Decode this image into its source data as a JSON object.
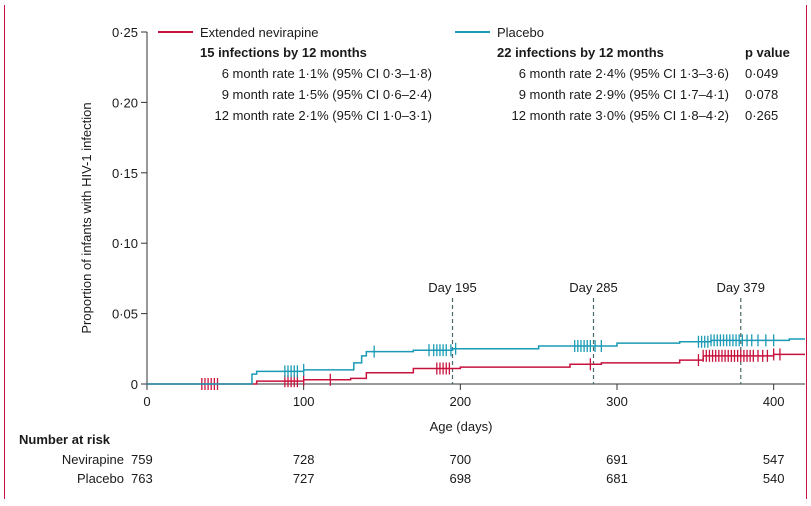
{
  "chart_data": {
    "type": "line",
    "subtype": "kaplan-meier step curve with censoring ticks",
    "xlabel": "Age (days)",
    "ylabel": "Proportion of infants with HIV-1 infection",
    "xlim": [
      0,
      420
    ],
    "ylim": [
      0,
      0.25
    ],
    "x_ticks": [
      0,
      100,
      200,
      300,
      400
    ],
    "y_ticks": [
      {
        "value": 0,
        "label": "0"
      },
      {
        "value": 0.05,
        "label": "0·05"
      },
      {
        "value": 0.1,
        "label": "0·10"
      },
      {
        "value": 0.15,
        "label": "0·15"
      },
      {
        "value": 0.2,
        "label": "0·20"
      },
      {
        "value": 0.25,
        "label": "0·25"
      }
    ],
    "reference_lines": [
      {
        "x": 195,
        "label": "Day 195"
      },
      {
        "x": 285,
        "label": "Day 285"
      },
      {
        "x": 379,
        "label": "Day 379"
      }
    ],
    "series": [
      {
        "name": "Extended nevirapine",
        "color": "#c8123e",
        "steps": [
          [
            0,
            0
          ],
          [
            68,
            0
          ],
          [
            70,
            0.002
          ],
          [
            100,
            0.003
          ],
          [
            130,
            0.004
          ],
          [
            140,
            0.008
          ],
          [
            170,
            0.011
          ],
          [
            200,
            0.012
          ],
          [
            270,
            0.014
          ],
          [
            290,
            0.015
          ],
          [
            340,
            0.017
          ],
          [
            355,
            0.02
          ],
          [
            400,
            0.021
          ],
          [
            420,
            0.021
          ]
        ],
        "censor": [
          35,
          37,
          39,
          41,
          43,
          45,
          88,
          90,
          92,
          94,
          96,
          100,
          117,
          185,
          187,
          189,
          191,
          193,
          283,
          352,
          355,
          357,
          359,
          361,
          363,
          365,
          367,
          369,
          371,
          373,
          375,
          377,
          379,
          381,
          383,
          385,
          387,
          390,
          393,
          396,
          400,
          404
        ]
      },
      {
        "name": "Placebo",
        "color": "#1a9bb5",
        "steps": [
          [
            0,
            0
          ],
          [
            64,
            0
          ],
          [
            67,
            0.007
          ],
          [
            70,
            0.009
          ],
          [
            100,
            0.01
          ],
          [
            132,
            0.015
          ],
          [
            137,
            0.02
          ],
          [
            140,
            0.023
          ],
          [
            170,
            0.024
          ],
          [
            195,
            0.025
          ],
          [
            250,
            0.027
          ],
          [
            300,
            0.029
          ],
          [
            340,
            0.03
          ],
          [
            360,
            0.031
          ],
          [
            410,
            0.032
          ],
          [
            420,
            0.032
          ]
        ],
        "censor": [
          88,
          90,
          92,
          94,
          96,
          100,
          145,
          180,
          183,
          185,
          187,
          189,
          191,
          194,
          197,
          273,
          275,
          277,
          279,
          281,
          283,
          286,
          290,
          352,
          354,
          356,
          358,
          360,
          362,
          364,
          366,
          368,
          370,
          372,
          374,
          376,
          378,
          380,
          383,
          386,
          390,
          395,
          400
        ]
      }
    ]
  },
  "legend": {
    "nevirapine": {
      "name": "Extended nevirapine",
      "summary": "15 infections by 12 months",
      "rows": [
        "6 month rate 1·1% (95% CI 0·3–1·8)",
        "9 month rate 1·5% (95% CI 0·6–2·4)",
        "12 month rate 2·1% (95% CI 1·0–3·1)"
      ]
    },
    "placebo": {
      "name": "Placebo",
      "summary": "22 infections by 12 months",
      "rows": [
        "6 month rate 2·4% (95% CI 1·3–3·6)",
        "9 month rate 2·9% (95% CI 1·7–4·1)",
        "12 month rate 3·0% (95% CI 1·8–4·2)"
      ]
    },
    "pvalue": {
      "header": "p value",
      "rows": [
        "0·049",
        "0·078",
        "0·265"
      ]
    }
  },
  "risk_table": {
    "title": "Number at risk",
    "rows": [
      {
        "label": "Nevirapine",
        "values": [
          "759",
          "728",
          "700",
          "691",
          "547"
        ]
      },
      {
        "label": "Placebo",
        "values": [
          "763",
          "727",
          "698",
          "681",
          "540"
        ]
      }
    ]
  }
}
